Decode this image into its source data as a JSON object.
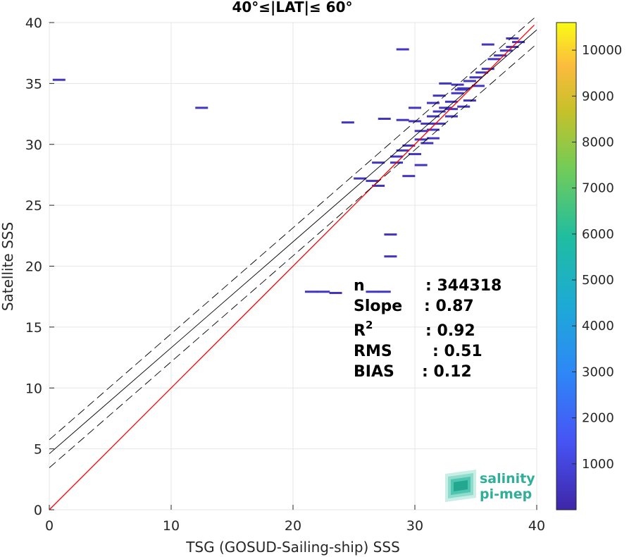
{
  "chart_data": {
    "type": "heatmap",
    "title": "40°≤|LAT|≤ 60°",
    "xlabel": "TSG (GOSUD-Sailing-ship) SSS",
    "ylabel": "Satellite SSS",
    "xlim": [
      0,
      40
    ],
    "ylim": [
      0,
      40
    ],
    "x_ticks": [
      "0",
      "10",
      "20",
      "30",
      "40"
    ],
    "y_ticks": [
      "0",
      "5",
      "10",
      "15",
      "20",
      "25",
      "30",
      "35",
      "40"
    ],
    "grid": true,
    "colorbar": {
      "range": [
        0,
        10600
      ],
      "ticks": [
        "1000",
        "2000",
        "3000",
        "4000",
        "5000",
        "6000",
        "7000",
        "8000",
        "9000",
        "10000"
      ],
      "colormap": "parula"
    },
    "reference_lines": {
      "one_to_one": {
        "color": "#ff0000",
        "slope": 1,
        "intercept": 0
      },
      "regression": {
        "color": "#000000",
        "slope": 0.87,
        "intercept": 4.6,
        "band": 1.15
      }
    },
    "stats": [
      {
        "label": "n",
        "value": ": 344318"
      },
      {
        "label": "Slope",
        "value": ": 0.87"
      },
      {
        "label": "R²",
        "value": ": 0.92"
      },
      {
        "label": "RMS",
        "value": ": 0.51"
      },
      {
        "label": "BIAS",
        "value": ": 0.12"
      }
    ],
    "points": [
      [
        0.8,
        35.3
      ],
      [
        12.5,
        33.0
      ],
      [
        21.5,
        17.9
      ],
      [
        22.5,
        17.9
      ],
      [
        23.5,
        17.8
      ],
      [
        26.5,
        17.9
      ],
      [
        27.5,
        17.9
      ],
      [
        28.0,
        22.6
      ],
      [
        28.0,
        20.8
      ],
      [
        26.5,
        27.0
      ],
      [
        27.0,
        26.6
      ],
      [
        28.5,
        28.5
      ],
      [
        27.0,
        28.5
      ],
      [
        29.0,
        29.5
      ],
      [
        30.0,
        29.2
      ],
      [
        30.5,
        28.3
      ],
      [
        29.5,
        29.9
      ],
      [
        31.0,
        30.1
      ],
      [
        30.5,
        31.1
      ],
      [
        31.5,
        31.2
      ],
      [
        31.0,
        31.7
      ],
      [
        30.0,
        31.9
      ],
      [
        29.0,
        32.0
      ],
      [
        27.5,
        32.1
      ],
      [
        24.5,
        31.8
      ],
      [
        31.5,
        32.3
      ],
      [
        32.0,
        32.7
      ],
      [
        32.5,
        33.0
      ],
      [
        31.5,
        33.4
      ],
      [
        33.0,
        33.5
      ],
      [
        32.0,
        34.0
      ],
      [
        33.5,
        34.2
      ],
      [
        34.0,
        34.6
      ],
      [
        32.5,
        35.0
      ],
      [
        34.5,
        35.2
      ],
      [
        35.0,
        35.5
      ],
      [
        35.5,
        35.9
      ],
      [
        36.0,
        36.2
      ],
      [
        34.5,
        33.6
      ],
      [
        33.0,
        32.9
      ],
      [
        32.0,
        31.7
      ],
      [
        33.5,
        34.9
      ],
      [
        36.5,
        37.0
      ],
      [
        37.0,
        37.3
      ],
      [
        37.5,
        37.7
      ],
      [
        38.0,
        38.0
      ],
      [
        38.5,
        38.4
      ],
      [
        38.0,
        38.7
      ],
      [
        36.0,
        38.2
      ],
      [
        29.0,
        37.8
      ],
      [
        30.5,
        30.4
      ],
      [
        29.5,
        27.4
      ],
      [
        25.5,
        27.2
      ],
      [
        28.5,
        29.0
      ],
      [
        31.5,
        30.5
      ],
      [
        33.0,
        32.3
      ],
      [
        34.0,
        33.1
      ],
      [
        30.0,
        33.0
      ],
      [
        33.8,
        34.5
      ],
      [
        35.2,
        34.8
      ]
    ]
  }
}
